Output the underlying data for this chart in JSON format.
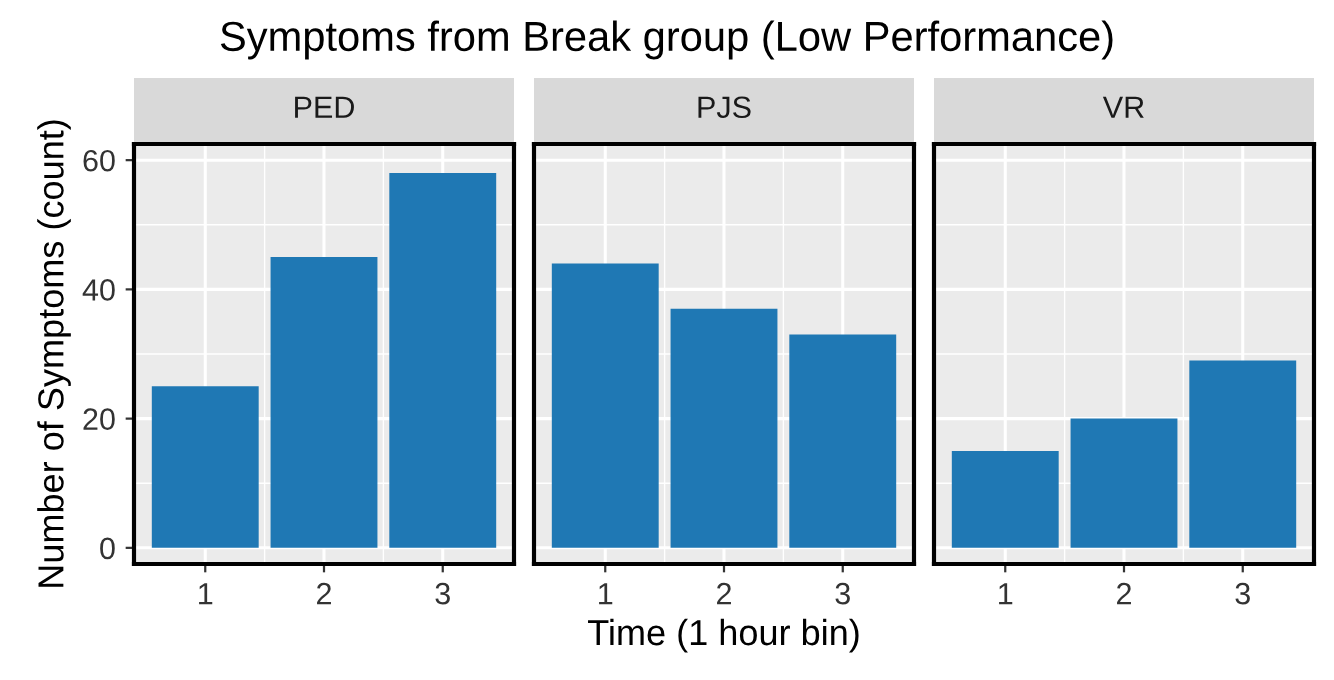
{
  "chart_data": [
    {
      "type": "bar",
      "title": "Symptoms from Break group (Low Performance)",
      "subtitle": "PED",
      "ylabel": "Number of Symptoms (count)",
      "categories": [
        "1",
        "2",
        "3"
      ],
      "values": [
        25,
        45,
        58
      ],
      "color": "#1f78b4",
      "ylim": [
        -2.5,
        62.5
      ],
      "yticks": [
        0,
        20,
        40,
        60
      ],
      "grid": true
    },
    {
      "type": "bar",
      "subtitle": "PJS",
      "xlabel": "Time (1 hour bin)",
      "categories": [
        "1",
        "2",
        "3"
      ],
      "values": [
        44,
        37,
        33
      ],
      "color": "#1f78b4",
      "ylim": [
        -2.5,
        62.5
      ],
      "yticks": [
        0,
        20,
        40,
        60
      ],
      "grid": true,
      "tick_labels": "x"
    },
    {
      "type": "bar",
      "subtitle": "VR",
      "categories": [
        "1",
        "2",
        "3"
      ],
      "values": [
        15,
        20,
        29
      ],
      "color": "#1f78b4",
      "ylim": [
        -2.5,
        62.5
      ],
      "yticks": [
        0,
        20,
        40,
        60
      ],
      "grid": true,
      "tick_labels": "x"
    }
  ]
}
